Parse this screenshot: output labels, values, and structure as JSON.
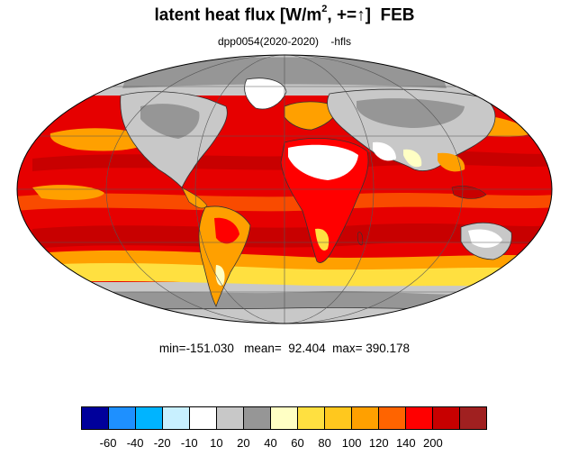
{
  "title": {
    "main": "latent heat flux [W/m",
    "sup": "2",
    "rest": ", +=",
    "arrow": "↑",
    "close": "]",
    "month": "FEB"
  },
  "subtitle": "dpp0054(2020-2020)    -hfls",
  "stats": {
    "min_label": "min=",
    "min": "-151.030",
    "mean_label": "mean=",
    "mean": "92.404",
    "max_label": "max=",
    "max": "390.178"
  },
  "colorbar": {
    "colors": [
      "#00009b",
      "#1e90ff",
      "#00b4ff",
      "#c8f0ff",
      "#ffffff",
      "#c8c8c8",
      "#969696",
      "#ffffc4",
      "#ffe040",
      "#ffc81e",
      "#ffa000",
      "#ff6400",
      "#ff0000",
      "#c80000",
      "#a02020"
    ],
    "labels": [
      "-60",
      "-40",
      "-20",
      "-10",
      "10",
      "20",
      "40",
      "60",
      "80",
      "100",
      "120",
      "140",
      "200"
    ]
  },
  "map": {
    "projection": "mollweide",
    "colors": {
      "ocean_warm": "#e60000",
      "ocean_hot": "#c80000",
      "mid": "#ff6400",
      "orange": "#ffa000",
      "yellow": "#ffe040",
      "pale": "#ffffc4",
      "gray_light": "#c8c8c8",
      "gray_dark": "#969696",
      "white": "#ffffff"
    }
  }
}
